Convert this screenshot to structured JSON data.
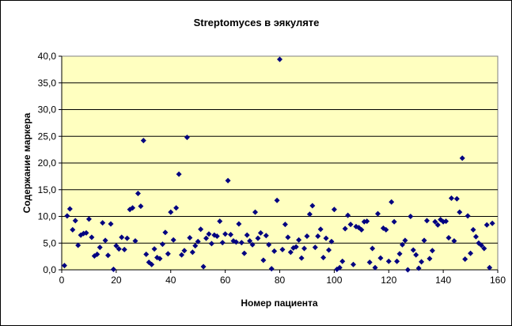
{
  "chart_data": {
    "type": "scatter",
    "title": "Streptomyces в эякуляте",
    "xlabel": "Номер пациента",
    "ylabel": "Содержание маркера",
    "xlim": [
      0,
      160
    ],
    "ylim": [
      0,
      40
    ],
    "x_ticks": [
      "0",
      "20",
      "40",
      "60",
      "80",
      "100",
      "120",
      "140",
      "160"
    ],
    "y_ticks": [
      "0,0",
      "5,0",
      "10,0",
      "15,0",
      "20,0",
      "25,0",
      "30,0",
      "35,0",
      "40,0"
    ],
    "grid": "horizontal",
    "legend": "none",
    "plot_background": "#FFFFC0",
    "marker_color": "#000080",
    "marker": "diamond",
    "points": [
      [
        1,
        0.8
      ],
      [
        2,
        10.1
      ],
      [
        3,
        11.4
      ],
      [
        4,
        7.5
      ],
      [
        5,
        9.2
      ],
      [
        6,
        4.6
      ],
      [
        7,
        6.5
      ],
      [
        8,
        6.8
      ],
      [
        9,
        6.9
      ],
      [
        10,
        9.5
      ],
      [
        11,
        6.1
      ],
      [
        12,
        2.6
      ],
      [
        13,
        2.9
      ],
      [
        14,
        4.2
      ],
      [
        15,
        8.8
      ],
      [
        16,
        5.5
      ],
      [
        17,
        2.7
      ],
      [
        18,
        8.6
      ],
      [
        19,
        0.1
      ],
      [
        20,
        4.5
      ],
      [
        21,
        3.9
      ],
      [
        22,
        6.1
      ],
      [
        23,
        3.8
      ],
      [
        24,
        5.9
      ],
      [
        25,
        11.3
      ],
      [
        26,
        11.6
      ],
      [
        27,
        5.4
      ],
      [
        28,
        14.3
      ],
      [
        29,
        11.9
      ],
      [
        30,
        24.2
      ],
      [
        31,
        2.9
      ],
      [
        32,
        1.4
      ],
      [
        33,
        1.0
      ],
      [
        34,
        3.9
      ],
      [
        35,
        2.3
      ],
      [
        36,
        2.1
      ],
      [
        37,
        4.8
      ],
      [
        38,
        7.0
      ],
      [
        39,
        3.0
      ],
      [
        40,
        10.8
      ],
      [
        41,
        5.6
      ],
      [
        42,
        11.6
      ],
      [
        43,
        17.9
      ],
      [
        44,
        2.8
      ],
      [
        45,
        3.6
      ],
      [
        46,
        24.8
      ],
      [
        47,
        6.0
      ],
      [
        48,
        3.3
      ],
      [
        49,
        4.5
      ],
      [
        50,
        5.3
      ],
      [
        51,
        7.6
      ],
      [
        52,
        0.6
      ],
      [
        53,
        5.9
      ],
      [
        54,
        6.7
      ],
      [
        55,
        4.9
      ],
      [
        56,
        6.5
      ],
      [
        57,
        6.3
      ],
      [
        58,
        9.1
      ],
      [
        59,
        5.1
      ],
      [
        60,
        6.7
      ],
      [
        61,
        16.7
      ],
      [
        62,
        6.6
      ],
      [
        63,
        5.4
      ],
      [
        64,
        5.2
      ],
      [
        65,
        8.6
      ],
      [
        66,
        5.1
      ],
      [
        67,
        3.1
      ],
      [
        68,
        6.5
      ],
      [
        69,
        5.4
      ],
      [
        70,
        4.7
      ],
      [
        71,
        10.8
      ],
      [
        72,
        5.9
      ],
      [
        73,
        6.9
      ],
      [
        74,
        1.8
      ],
      [
        75,
        6.4
      ],
      [
        76,
        4.7
      ],
      [
        77,
        0.2
      ],
      [
        78,
        3.5
      ],
      [
        79,
        13.0
      ],
      [
        80,
        39.4
      ],
      [
        81,
        3.8
      ],
      [
        82,
        8.5
      ],
      [
        83,
        6.1
      ],
      [
        84,
        3.3
      ],
      [
        85,
        4.1
      ],
      [
        86,
        4.3
      ],
      [
        87,
        5.6
      ],
      [
        88,
        2.2
      ],
      [
        89,
        4.0
      ],
      [
        90,
        6.3
      ],
      [
        91,
        10.4
      ],
      [
        92,
        12.0
      ],
      [
        93,
        4.2
      ],
      [
        94,
        6.3
      ],
      [
        95,
        7.6
      ],
      [
        96,
        2.3
      ],
      [
        97,
        5.9
      ],
      [
        98,
        3.7
      ],
      [
        99,
        5.3
      ],
      [
        100,
        11.3
      ],
      [
        101,
        0.1
      ],
      [
        102,
        0.4
      ],
      [
        103,
        1.6
      ],
      [
        104,
        7.7
      ],
      [
        105,
        10.2
      ],
      [
        106,
        8.5
      ],
      [
        107,
        1.0
      ],
      [
        108,
        8.1
      ],
      [
        109,
        7.9
      ],
      [
        110,
        7.5
      ],
      [
        111,
        9.0
      ],
      [
        112,
        9.1
      ],
      [
        113,
        1.4
      ],
      [
        114,
        4.0
      ],
      [
        115,
        0.4
      ],
      [
        116,
        10.5
      ],
      [
        117,
        2.2
      ],
      [
        118,
        7.8
      ],
      [
        119,
        7.5
      ],
      [
        120,
        1.6
      ],
      [
        121,
        12.7
      ],
      [
        122,
        9.0
      ],
      [
        123,
        1.6
      ],
      [
        124,
        3.0
      ],
      [
        125,
        4.7
      ],
      [
        126,
        5.5
      ],
      [
        127,
        0.0
      ],
      [
        128,
        10.0
      ],
      [
        129,
        3.7
      ],
      [
        130,
        2.8
      ],
      [
        131,
        0.3
      ],
      [
        132,
        1.5
      ],
      [
        133,
        5.5
      ],
      [
        134,
        9.2
      ],
      [
        135,
        2.1
      ],
      [
        136,
        3.6
      ],
      [
        137,
        9.0
      ],
      [
        138,
        8.4
      ],
      [
        139,
        9.4
      ],
      [
        140,
        9.0
      ],
      [
        141,
        9.1
      ],
      [
        142,
        6.0
      ],
      [
        143,
        13.4
      ],
      [
        144,
        5.4
      ],
      [
        145,
        13.3
      ],
      [
        146,
        10.8
      ],
      [
        147,
        20.9
      ],
      [
        148,
        2.0
      ],
      [
        149,
        10.1
      ],
      [
        150,
        3.1
      ],
      [
        151,
        7.5
      ],
      [
        152,
        6.2
      ],
      [
        153,
        5.0
      ],
      [
        154,
        4.6
      ],
      [
        155,
        4.0
      ],
      [
        156,
        8.4
      ],
      [
        157,
        0.4
      ],
      [
        158,
        8.7
      ]
    ]
  }
}
